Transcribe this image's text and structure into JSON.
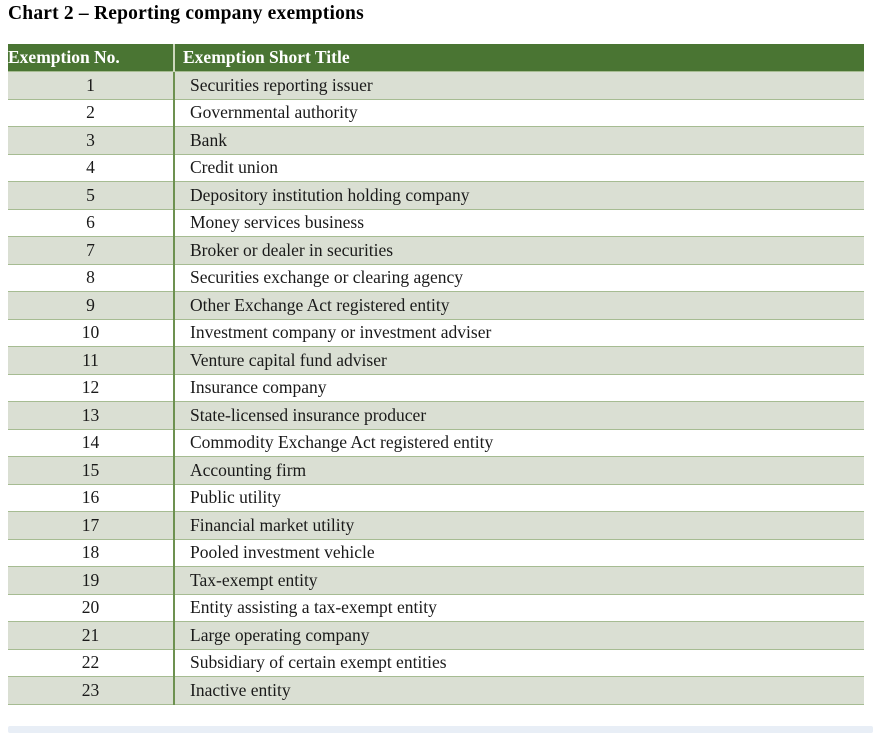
{
  "page_title": "Chart 2 – Reporting company exemptions",
  "table": {
    "columns": [
      {
        "label": "Exemption No."
      },
      {
        "label": "Exemption Short Title"
      }
    ],
    "rows": [
      {
        "no": "1",
        "short_title": "Securities reporting issuer"
      },
      {
        "no": "2",
        "short_title": "Governmental authority"
      },
      {
        "no": "3",
        "short_title": "Bank"
      },
      {
        "no": "4",
        "short_title": "Credit union"
      },
      {
        "no": "5",
        "short_title": "Depository institution holding company"
      },
      {
        "no": "6",
        "short_title": "Money services business"
      },
      {
        "no": "7",
        "short_title": "Broker or dealer in securities"
      },
      {
        "no": "8",
        "short_title": "Securities exchange or clearing agency"
      },
      {
        "no": "9",
        "short_title": "Other Exchange Act registered entity"
      },
      {
        "no": "10",
        "short_title": "Investment company or investment adviser"
      },
      {
        "no": "11",
        "short_title": "Venture capital fund adviser"
      },
      {
        "no": "12",
        "short_title": "Insurance company"
      },
      {
        "no": "13",
        "short_title": "State-licensed insurance producer"
      },
      {
        "no": "14",
        "short_title": "Commodity Exchange Act registered entity"
      },
      {
        "no": "15",
        "short_title": "Accounting firm"
      },
      {
        "no": "16",
        "short_title": "Public utility"
      },
      {
        "no": "17",
        "short_title": "Financial market utility"
      },
      {
        "no": "18",
        "short_title": "Pooled investment vehicle"
      },
      {
        "no": "19",
        "short_title": "Tax-exempt entity"
      },
      {
        "no": "20",
        "short_title": "Entity assisting a tax-exempt entity"
      },
      {
        "no": "21",
        "short_title": "Large operating company"
      },
      {
        "no": "22",
        "short_title": "Subsidiary of certain exempt entities"
      },
      {
        "no": "23",
        "short_title": "Inactive entity"
      }
    ]
  },
  "colors": {
    "header_bg": "#4a7533",
    "header_text": "#ffffff",
    "row_shaded_bg": "#dadfd3",
    "row_white_bg": "#ffffff",
    "row_border": "#a6bc92",
    "column_divider": "#6d9150",
    "bottom_strip_bg": "#e8eef6",
    "title_text": "#000000",
    "body_text": "#1a1a1a"
  }
}
